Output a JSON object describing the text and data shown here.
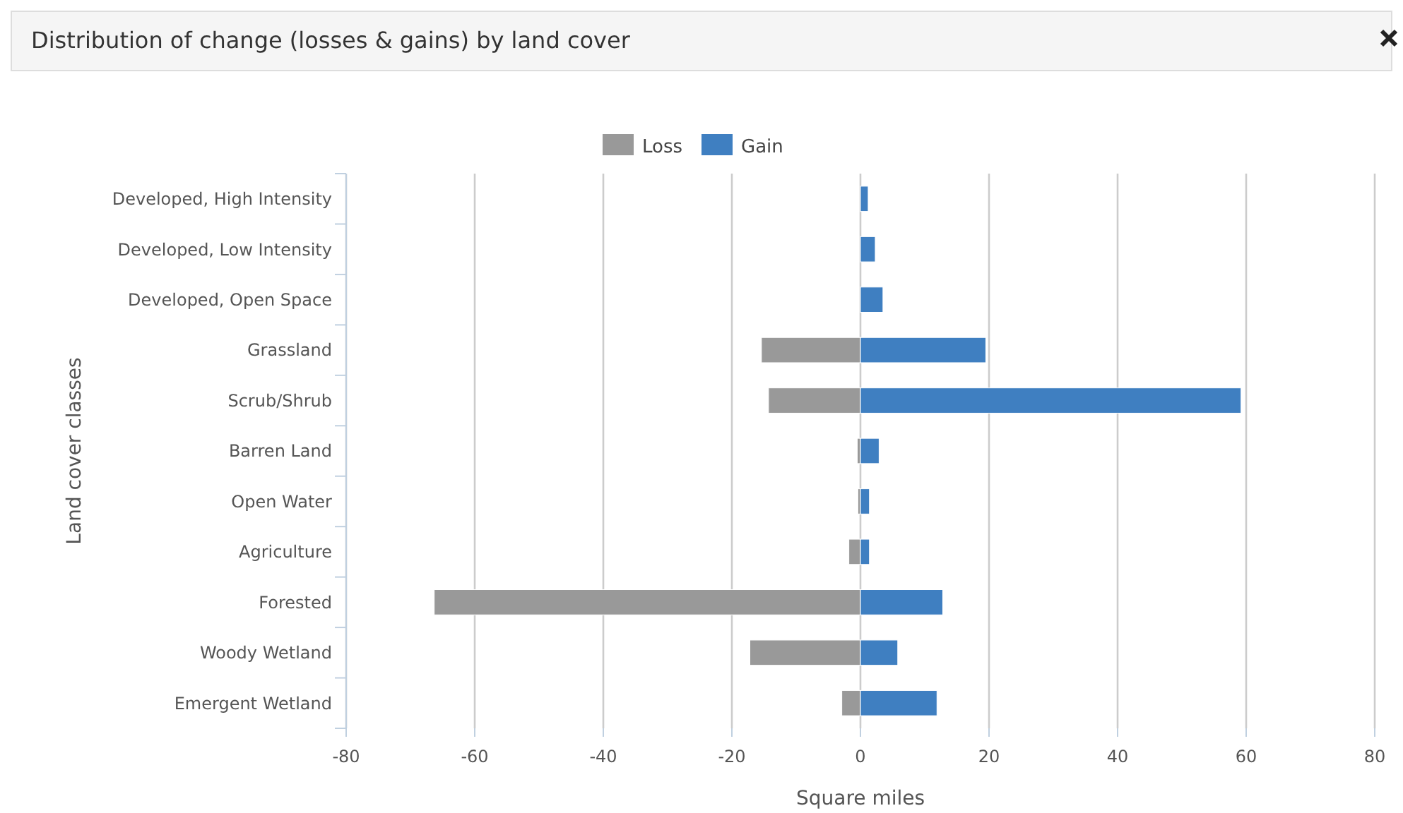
{
  "chart_data": {
    "type": "bar",
    "orientation": "horizontal",
    "stacked": true,
    "title": "Distribution of change (losses & gains) by land cover",
    "xlabel": "Square miles",
    "ylabel": "Land cover classes",
    "categories": [
      "Developed, High Intensity",
      "Developed, Low Intensity",
      "Developed, Open Space",
      "Grassland",
      "Scrub/Shrub",
      "Barren Land",
      "Open Water",
      "Agriculture",
      "Forested",
      "Woody Wetland",
      "Emergent Wetland"
    ],
    "series": [
      {
        "name": "Loss",
        "color": "#999999",
        "values": [
          0,
          0,
          0,
          -15.4,
          -14.3,
          -0.5,
          -0.4,
          -1.8,
          -66.3,
          -17.2,
          -2.9
        ]
      },
      {
        "name": "Gain",
        "color": "#3f7fc1",
        "values": [
          1.2,
          2.3,
          3.5,
          19.5,
          59.2,
          2.9,
          1.4,
          1.4,
          12.8,
          5.8,
          11.9
        ]
      }
    ],
    "xlim": [
      -80,
      80
    ],
    "xticks": [
      -80,
      -60,
      -40,
      -20,
      0,
      20,
      40,
      60,
      80
    ],
    "grid": "x",
    "legend": "top"
  }
}
